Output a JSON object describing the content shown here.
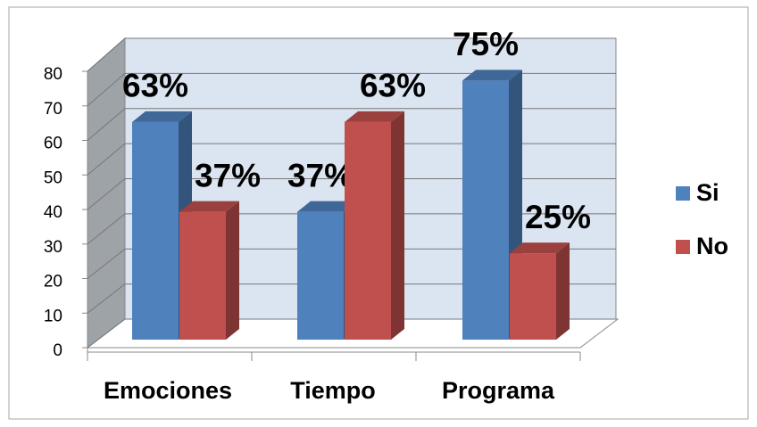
{
  "chart_data": {
    "type": "bar3d",
    "categories": [
      "Emociones",
      "Tiempo",
      "Programa"
    ],
    "series": [
      {
        "name": "Si",
        "color": "#4f81bd",
        "values": [
          63,
          37,
          75
        ],
        "value_labels": [
          "63%",
          "37%",
          "75%"
        ]
      },
      {
        "name": "No",
        "color": "#c0504d",
        "values": [
          37,
          63,
          25
        ],
        "value_labels": [
          "37%",
          "63%",
          "25%"
        ]
      }
    ],
    "ylim": [
      0,
      80
    ],
    "yticks": [
      0,
      10,
      20,
      30,
      40,
      50,
      60,
      70,
      80
    ],
    "grid": true,
    "legend": "right"
  }
}
